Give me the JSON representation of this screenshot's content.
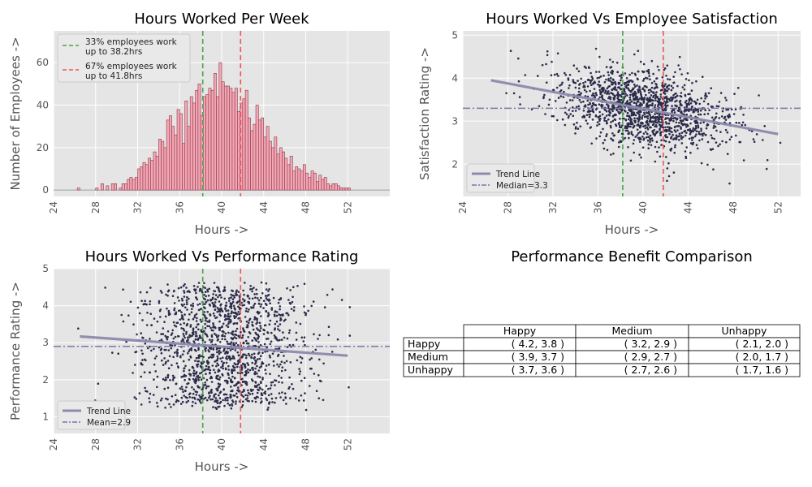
{
  "colors": {
    "panel_bg": "#e5e5e5",
    "grid": "#ffffff",
    "bar_fill": "#f4a6b4",
    "bar_edge": "#8a3a4a",
    "scatter": "#2b2b4a",
    "trend": "#8e8aae",
    "reference": "#7b76a6",
    "line_33": "#4aa44a",
    "line_67": "#ee5555"
  },
  "chart_data": [
    {
      "type": "bar",
      "title": "Hours Worked Per Week",
      "xlabel": "Hours ->",
      "ylabel": "Number of Employees ->",
      "xlim": [
        24,
        56
      ],
      "ylim": [
        -3,
        75
      ],
      "xticks": [
        24,
        28,
        32,
        36,
        40,
        44,
        48,
        52
      ],
      "yticks": [
        0,
        20,
        40,
        60
      ],
      "grid": true,
      "legend_position": "upper-left",
      "bin_width": 0.25,
      "x": [
        26.25,
        28.0,
        28.5,
        29.0,
        29.5,
        29.75,
        30.25,
        30.5,
        30.75,
        31.0,
        31.25,
        31.5,
        31.75,
        32.0,
        32.25,
        32.5,
        32.75,
        33.0,
        33.25,
        33.5,
        33.75,
        34.0,
        34.25,
        34.5,
        34.75,
        35.0,
        35.25,
        35.5,
        35.75,
        36.0,
        36.25,
        36.5,
        36.75,
        37.0,
        37.25,
        37.5,
        37.75,
        38.0,
        38.25,
        38.5,
        38.75,
        39.0,
        39.25,
        39.5,
        39.75,
        40.0,
        40.25,
        40.5,
        40.75,
        41.0,
        41.25,
        41.5,
        41.75,
        42.0,
        42.25,
        42.5,
        42.75,
        43.0,
        43.25,
        43.5,
        43.75,
        44.0,
        44.25,
        44.5,
        44.75,
        45.0,
        45.25,
        45.5,
        45.75,
        46.0,
        46.25,
        46.5,
        46.75,
        47.0,
        47.25,
        47.5,
        47.75,
        48.0,
        48.25,
        48.5,
        48.75,
        49.0,
        49.25,
        49.5,
        49.75,
        50.0,
        50.25,
        50.5,
        50.75,
        51.0,
        51.25,
        51.5,
        51.75,
        52.0
      ],
      "values": [
        1,
        1,
        3,
        2,
        3,
        3,
        1,
        3,
        3,
        5,
        6,
        5,
        6,
        10,
        11,
        13,
        12,
        15,
        14,
        18,
        16,
        24,
        23,
        20,
        33,
        35,
        30,
        26,
        38,
        36,
        22,
        42,
        30,
        44,
        41,
        47,
        50,
        35,
        44,
        45,
        48,
        47,
        55,
        44,
        60,
        51,
        49,
        49,
        48,
        46,
        48,
        37,
        41,
        43,
        47,
        34,
        28,
        31,
        40,
        33,
        34,
        25,
        30,
        23,
        20,
        25,
        17,
        20,
        18,
        15,
        12,
        16,
        9,
        11,
        10,
        9,
        12,
        8,
        6,
        9,
        8,
        4,
        7,
        5,
        6,
        3,
        2,
        3,
        3,
        2,
        1,
        1,
        1,
        1
      ],
      "vlines": [
        {
          "x": 38.2,
          "label": "33% employees work\nup to 38.2hrs",
          "color": "#4aa44a"
        },
        {
          "x": 41.8,
          "label": "67% employees work\nup to 41.8hrs",
          "color": "#ee5555"
        }
      ]
    },
    {
      "type": "scatter",
      "title": "Hours Worked Vs Employee Satisfaction",
      "xlabel": "Hours ->",
      "ylabel": "Satisfaction Rating ->",
      "xlim": [
        24,
        54
      ],
      "ylim": [
        1.25,
        5.1
      ],
      "xticks": [
        24,
        28,
        32,
        36,
        40,
        44,
        48,
        52
      ],
      "yticks": [
        2,
        3,
        4,
        5
      ],
      "grid": true,
      "legend_position": "lower-left",
      "n_points": 1500,
      "x_mean": 40.0,
      "x_sd": 3.8,
      "trend": {
        "label": "Trend Line",
        "x": [
          26.5,
          52.0
        ],
        "y": [
          3.95,
          2.7
        ]
      },
      "hline": {
        "label": "Median=3.3",
        "y": 3.3
      },
      "vlines": [
        38.2,
        41.8
      ]
    },
    {
      "type": "scatter",
      "title": "Hours Worked Vs Performance Rating",
      "xlabel": "Hours ->",
      "ylabel": "Performance Rating ->",
      "xlim": [
        24,
        56
      ],
      "ylim": [
        0.55,
        5.0
      ],
      "xticks": [
        24,
        28,
        32,
        36,
        40,
        44,
        48,
        52
      ],
      "yticks": [
        1,
        2,
        3,
        4,
        5
      ],
      "grid": true,
      "legend_position": "lower-left",
      "n_points": 1500,
      "x_mean": 40.0,
      "x_sd": 3.9,
      "trend": {
        "label": "Trend Line",
        "x": [
          26.5,
          52.0
        ],
        "y": [
          3.17,
          2.65
        ]
      },
      "hline": {
        "label": "Mean=2.9",
        "y": 2.9
      },
      "vlines": [
        38.2,
        41.8
      ]
    },
    {
      "type": "table",
      "title": "Performance Benefit Comparison",
      "columns": [
        "Happy",
        "Medium",
        "Unhappy"
      ],
      "rows": [
        {
          "label": "Happy",
          "cells": [
            "( 4.2, 3.8 )",
            "( 3.2, 2.9 )",
            "( 2.1, 2.0 )"
          ]
        },
        {
          "label": "Medium",
          "cells": [
            "( 3.9, 3.7 )",
            "( 2.9, 2.7 )",
            "( 2.0, 1.7 )"
          ]
        },
        {
          "label": "Unhappy",
          "cells": [
            "( 3.7, 3.6 )",
            "( 2.7, 2.6 )",
            "( 1.7, 1.6 )"
          ]
        }
      ]
    }
  ]
}
